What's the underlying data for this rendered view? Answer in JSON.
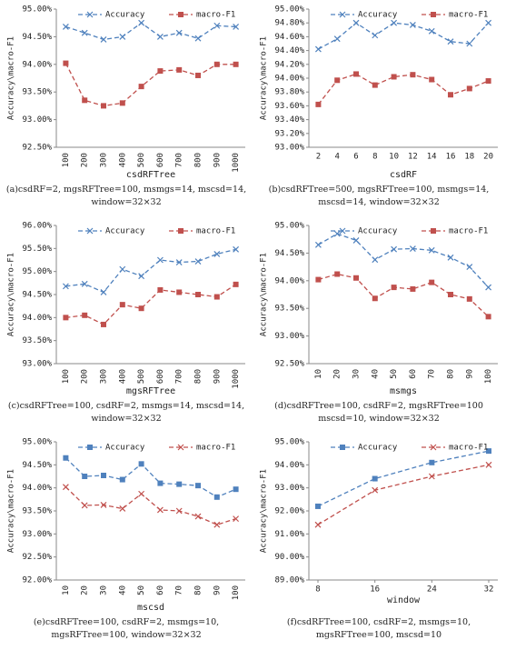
{
  "chart_data": [
    {
      "type": "line",
      "x_label": "csdRFTree",
      "y_label": "Accuracy\\macro-F1",
      "caption": "(a)csdRF=2, mgsRFTree=100, msmgs=14, mscsd=14, window=32×32",
      "categories": [
        "100",
        "200",
        "300",
        "400",
        "500",
        "600",
        "700",
        "800",
        "900",
        "1000"
      ],
      "series": [
        {
          "name": "Accuracy",
          "color": "#4f81bd",
          "marker": "x",
          "values": [
            94.68,
            94.57,
            94.45,
            94.5,
            94.75,
            94.5,
            94.57,
            94.47,
            94.7,
            94.68
          ]
        },
        {
          "name": "macro-F1",
          "color": "#c0504d",
          "marker": "square",
          "values": [
            94.02,
            93.35,
            93.25,
            93.3,
            93.6,
            93.88,
            93.9,
            93.8,
            94.0,
            94.0
          ]
        }
      ],
      "ylim": [
        92.5,
        95
      ],
      "yticks": [
        {
          "value": 92.5,
          "label": "92.50%"
        },
        {
          "value": 93,
          "label": "93.00%"
        },
        {
          "value": 93.5,
          "label": "93.50%"
        },
        {
          "value": 94,
          "label": "94.00%"
        },
        {
          "value": 94.5,
          "label": "94.50%"
        },
        {
          "value": 95,
          "label": "95.00%"
        }
      ],
      "legend": "top"
    },
    {
      "type": "line",
      "x_label": "csdRF",
      "y_label": "Accuracy\\macro-F1",
      "caption": "(b)csdRFTree=500, mgsRFTree=100, msmgs=14, mscsd=14, window=32×32",
      "categories": [
        "2",
        "4",
        "6",
        "8",
        "10",
        "12",
        "14",
        "16",
        "18",
        "20"
      ],
      "series": [
        {
          "name": "Accuracy",
          "color": "#4f81bd",
          "marker": "x",
          "values": [
            94.42,
            94.57,
            94.8,
            94.62,
            94.8,
            94.77,
            94.68,
            94.53,
            94.5,
            94.8
          ]
        },
        {
          "name": "macro-F1",
          "color": "#c0504d",
          "marker": "square",
          "values": [
            93.62,
            93.97,
            94.06,
            93.9,
            94.02,
            94.05,
            93.98,
            93.76,
            93.85,
            93.96
          ]
        }
      ],
      "ylim": [
        93,
        95
      ],
      "yticks": [
        {
          "value": 93,
          "label": "93.00%"
        },
        {
          "value": 93.2,
          "label": "93.20%"
        },
        {
          "value": 93.4,
          "label": "93.40%"
        },
        {
          "value": 93.6,
          "label": "93.60%"
        },
        {
          "value": 93.8,
          "label": "93.80%"
        },
        {
          "value": 94,
          "label": "94.00%"
        },
        {
          "value": 94.2,
          "label": "94.20%"
        },
        {
          "value": 94.4,
          "label": "94.40%"
        },
        {
          "value": 94.6,
          "label": "94.60%"
        },
        {
          "value": 94.8,
          "label": "94.80%"
        },
        {
          "value": 95,
          "label": "95.00%"
        }
      ],
      "legend": "top"
    },
    {
      "type": "line",
      "x_label": "mgsRFTree",
      "y_label": "Accuracy\\macro-F1",
      "caption": "(c)csdRFTree=100, csdRF=2, msmgs=14, mscsd=14, window=32×32",
      "categories": [
        "100",
        "200",
        "300",
        "400",
        "500",
        "600",
        "700",
        "800",
        "900",
        "1000"
      ],
      "series": [
        {
          "name": "Accuracy",
          "color": "#4f81bd",
          "marker": "x",
          "values": [
            94.68,
            94.73,
            94.55,
            95.05,
            94.9,
            95.25,
            95.2,
            95.22,
            95.38,
            95.48
          ]
        },
        {
          "name": "macro-F1",
          "color": "#c0504d",
          "marker": "square",
          "values": [
            94.0,
            94.05,
            93.85,
            94.28,
            94.2,
            94.6,
            94.55,
            94.5,
            94.45,
            94.72
          ]
        }
      ],
      "ylim": [
        93,
        96
      ],
      "yticks": [
        {
          "value": 93,
          "label": "93.00%"
        },
        {
          "value": 93.5,
          "label": "93.50%"
        },
        {
          "value": 94,
          "label": "94.00%"
        },
        {
          "value": 94.5,
          "label": "94.50%"
        },
        {
          "value": 95,
          "label": "95.00%"
        },
        {
          "value": 95.5,
          "label": "95.50%"
        },
        {
          "value": 96,
          "label": "96.00%"
        }
      ],
      "legend": "top"
    },
    {
      "type": "line",
      "x_label": "msmgs",
      "y_label": "Accuracy\\macro-F1",
      "caption": "(d)csdRFTree=100, csdRF=2, mgsRFTree=100 mscsd=10, window=32×32",
      "categories": [
        "10",
        "20",
        "30",
        "40",
        "50",
        "60",
        "70",
        "80",
        "90",
        "100"
      ],
      "series": [
        {
          "name": "Accuracy",
          "color": "#4f81bd",
          "marker": "x",
          "values": [
            94.65,
            94.85,
            94.73,
            94.38,
            94.57,
            94.58,
            94.55,
            94.42,
            94.25,
            93.88
          ]
        },
        {
          "name": "macro-F1",
          "color": "#c0504d",
          "marker": "square",
          "values": [
            94.02,
            94.12,
            94.05,
            93.68,
            93.88,
            93.85,
            93.97,
            93.75,
            93.67,
            93.35
          ]
        }
      ],
      "ylim": [
        92.5,
        95
      ],
      "yticks": [
        {
          "value": 92.5,
          "label": "92.50%"
        },
        {
          "value": 93,
          "label": "93.00%"
        },
        {
          "value": 93.5,
          "label": "93.50%"
        },
        {
          "value": 94,
          "label": "94.00%"
        },
        {
          "value": 94.5,
          "label": "94.50%"
        },
        {
          "value": 95,
          "label": "95.00%"
        }
      ],
      "legend": "top"
    },
    {
      "type": "line",
      "x_label": "mscsd",
      "y_label": "Accuracy\\macro-F1",
      "caption": "(e)csdRFTree=100, csdRF=2, msmgs=10, mgsRFTree=100, window=32×32",
      "categories": [
        "10",
        "20",
        "30",
        "40",
        "50",
        "60",
        "70",
        "80",
        "90",
        "100"
      ],
      "series": [
        {
          "name": "Accuracy",
          "color": "#4f81bd",
          "marker": "square",
          "values": [
            94.65,
            94.25,
            94.27,
            94.18,
            94.52,
            94.1,
            94.08,
            94.05,
            93.8,
            93.97
          ]
        },
        {
          "name": "macro-F1",
          "color": "#c0504d",
          "marker": "x",
          "values": [
            94.02,
            93.62,
            93.63,
            93.55,
            93.87,
            93.52,
            93.5,
            93.38,
            93.2,
            93.33
          ]
        }
      ],
      "ylim": [
        92,
        95
      ],
      "yticks": [
        {
          "value": 92,
          "label": "92.00%"
        },
        {
          "value": 92.5,
          "label": "92.50%"
        },
        {
          "value": 93,
          "label": "93.00%"
        },
        {
          "value": 93.5,
          "label": "93.50%"
        },
        {
          "value": 94,
          "label": "94.00%"
        },
        {
          "value": 94.5,
          "label": "94.50%"
        },
        {
          "value": 95,
          "label": "95.00%"
        }
      ],
      "legend": "top"
    },
    {
      "type": "line",
      "x_label": "window",
      "y_label": "Accuracy\\macro-F1",
      "caption": "(f)csdRFTree=100, csdRF=2, msmgs=10, mgsRFTree=100, mscsd=10",
      "x": [
        8,
        16,
        24,
        32
      ],
      "xlim": [
        8,
        32
      ],
      "xticks": [
        8,
        16,
        24,
        32
      ],
      "series": [
        {
          "name": "Accuracy",
          "color": "#4f81bd",
          "marker": "square",
          "values": [
            92.2,
            93.4,
            94.1,
            94.6
          ]
        },
        {
          "name": "macro-F1",
          "color": "#c0504d",
          "marker": "x",
          "values": [
            91.4,
            92.9,
            93.5,
            94.0
          ]
        }
      ],
      "ylim": [
        89,
        95
      ],
      "yticks": [
        {
          "value": 89,
          "label": "89.00%"
        },
        {
          "value": 90,
          "label": "90.00%"
        },
        {
          "value": 91,
          "label": "91.00%"
        },
        {
          "value": 92,
          "label": "92.00%"
        },
        {
          "value": 93,
          "label": "93.00%"
        },
        {
          "value": 94,
          "label": "94.00%"
        },
        {
          "value": 95,
          "label": "95.00%"
        }
      ],
      "legend": "top"
    }
  ]
}
